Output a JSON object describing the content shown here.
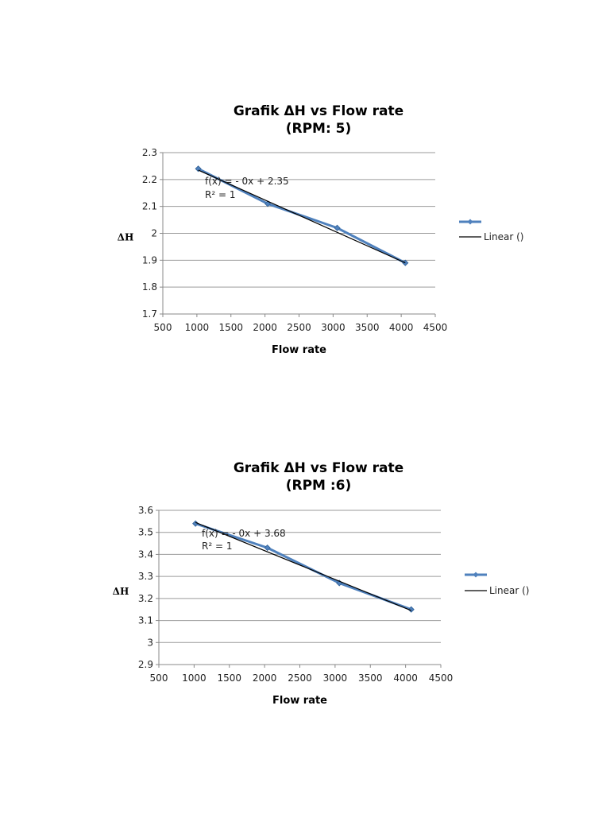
{
  "chart_data": [
    {
      "type": "line",
      "title_lines": [
        "Grafik ΔH vs Flow rate",
        "(RPM: 5)"
      ],
      "xlabel": "Flow rate",
      "ylabel": "ΔH",
      "xlim": [
        500,
        4500
      ],
      "ylim": [
        1.7,
        2.3
      ],
      "x_ticks": [
        500,
        1000,
        1500,
        2000,
        2500,
        3000,
        3500,
        4000,
        4500
      ],
      "y_ticks": [
        1.7,
        1.8,
        1.9,
        2,
        2.1,
        2.2,
        2.3
      ],
      "y_tick_labels": [
        "1.7",
        "1.8",
        "1.9",
        "2",
        "2.1",
        "2.2",
        "2.3"
      ],
      "grid": "horizontal",
      "series": [
        {
          "x": [
            1020,
            2040,
            3060,
            4060
          ],
          "y": [
            2.24,
            2.11,
            2.02,
            1.89
          ],
          "color": "#4f81bd",
          "marker": "diamond"
        }
      ],
      "trendline": {
        "type": "linear",
        "x": [
          1020,
          4060
        ],
        "y": [
          2.235,
          1.89
        ],
        "color": "#000000"
      },
      "annotation_lines": [
        "f(x) =  - 0x + 2.35",
        "R² = 1"
      ],
      "legend": {
        "position": "right",
        "entries": [
          "",
          "Linear ()"
        ]
      }
    },
    {
      "type": "line",
      "title_lines": [
        "Grafik ΔH vs Flow rate",
        "(RPM :6)"
      ],
      "xlabel": "Flow rate",
      "ylabel": "ΔH",
      "xlim": [
        500,
        4500
      ],
      "ylim": [
        2.9,
        3.6
      ],
      "x_ticks": [
        500,
        1000,
        1500,
        2000,
        2500,
        3000,
        3500,
        4000,
        4500
      ],
      "y_ticks": [
        2.9,
        3,
        3.1,
        3.2,
        3.3,
        3.4,
        3.5,
        3.6
      ],
      "y_tick_labels": [
        "2.9",
        "3",
        "3.1",
        "3.2",
        "3.3",
        "3.4",
        "3.5",
        "3.6"
      ],
      "grid": "horizontal",
      "series": [
        {
          "x": [
            1020,
            2040,
            3060,
            4080
          ],
          "y": [
            3.54,
            3.43,
            3.27,
            3.15
          ],
          "color": "#4f81bd",
          "marker": "diamond"
        }
      ],
      "trendline": {
        "type": "linear",
        "x": [
          1020,
          4080
        ],
        "y": [
          3.545,
          3.145
        ],
        "color": "#000000"
      },
      "annotation_lines": [
        "f(x) =  - 0x + 3.68",
        "R² = 1"
      ],
      "legend": {
        "position": "right",
        "entries": [
          "",
          "Linear ()"
        ]
      }
    }
  ]
}
